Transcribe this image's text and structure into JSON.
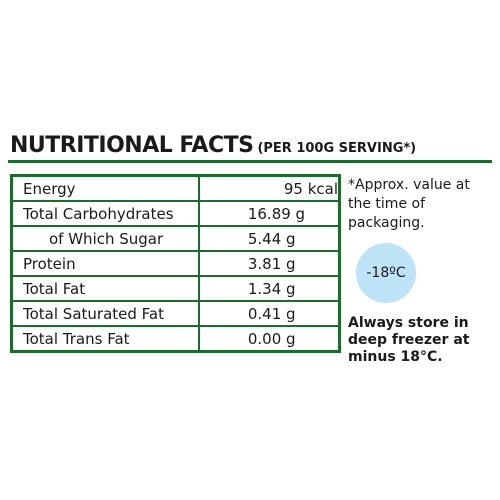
{
  "header": {
    "title": "NUTRITIONAL FACTS",
    "subtitle": "(PER 100G SERVING*)"
  },
  "table": {
    "rows": [
      [
        "Energy",
        "95 kcal"
      ],
      [
        "Total Carbohydrates",
        "16.89 g"
      ],
      [
        "of Which Sugar",
        "5.44 g"
      ],
      [
        "Protein",
        "3.81 g"
      ],
      [
        "Total Fat",
        "1.34 g"
      ],
      [
        "Total Saturated Fat",
        "0.41 g"
      ],
      [
        "Total Trans Fat",
        "0.00 g"
      ]
    ]
  },
  "note": "*Approx. value at the time of packaging.",
  "badge": "-18ºC",
  "storage": "Always store in deep freezer at minus 18°C."
}
